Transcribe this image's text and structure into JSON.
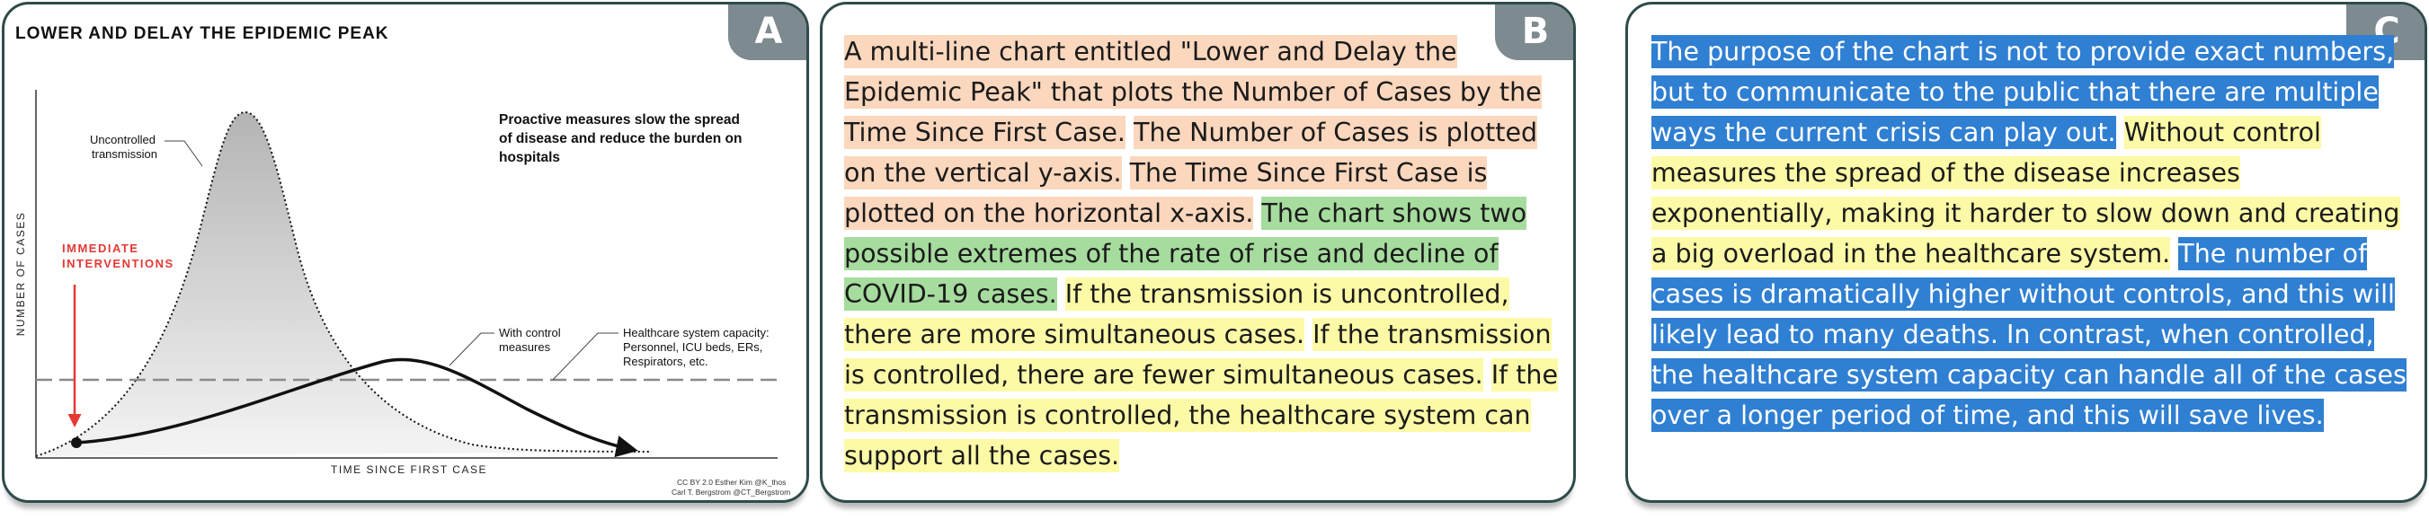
{
  "panels": {
    "a": {
      "tab": "A"
    },
    "b": {
      "tab": "B",
      "segments": [
        {
          "text": "A multi-line chart entitled \"Lower and Delay the Epidemic Peak\" that plots the Number of Cases by the Time Since First Case.",
          "color": "orange"
        },
        {
          "text": "The Number of Cases is plotted on the vertical y-axis.",
          "color": "orange"
        },
        {
          "text": "The Time Since First Case is plotted on the horizontal x-axis.",
          "color": "orange"
        },
        {
          "text": "The chart shows two possible extremes of the rate of rise and decline of COVID-19 cases.",
          "color": "green"
        },
        {
          "text": "If the transmission is uncontrolled, there are more simultaneous cases.",
          "color": "yellow"
        },
        {
          "text": "If the transmission is controlled, there are fewer simultaneous cases.",
          "color": "yellow"
        },
        {
          "text": "If the transmission is controlled, the healthcare system can support all the cases.",
          "color": "yellow"
        }
      ]
    },
    "c": {
      "tab": "C",
      "segments": [
        {
          "text": "The purpose of the chart is not to provide exact numbers, but to communicate to the public that there are multiple ways the current crisis can play out.",
          "color": "blue"
        },
        {
          "text": "Without control measures the spread of the disease increases exponentially, making it harder to slow down and creating a big overload in the healthcare system.",
          "color": "yellow"
        },
        {
          "text": "The number of cases is dramatically higher without controls, and this will likely lead to many deaths. In contrast, when controlled, the healthcare system capacity can handle all of the cases over a longer period of time, and this will save lives.",
          "color": "blue"
        }
      ]
    }
  },
  "chart": {
    "title": "LOWER AND DELAY THE EPIDEMIC PEAK",
    "ylabel": "NUMBER OF CASES",
    "xlabel": "TIME SINCE FIRST CASE",
    "uncontrolled_label": [
      "Uncontrolled",
      "transmission"
    ],
    "controlled_label": [
      "With control",
      "measures"
    ],
    "capacity_label": [
      "Healthcare system capacity:",
      "Personnel, ICU beds, ERs,",
      "Respirators, etc."
    ],
    "note": [
      "Proactive measures slow the spread",
      "of disease and reduce the burden on",
      "hospitals"
    ],
    "interventions": [
      "IMMEDIATE",
      "INTERVENTIONS"
    ],
    "credit": [
      "CC BY 2.0  Esther Kim  @K_thos",
      "Carl T. Bergstrom  @CT_Bergstrom"
    ]
  },
  "colors": {
    "orange": "#fbd7bd",
    "green": "#a6dc9e",
    "yellow": "#fdfaa7",
    "blue": "#2f7fd2",
    "intervention_red": "#e53935",
    "tab_grey": "#7d8a8f",
    "border": "#2f4b4b"
  },
  "chart_data": {
    "type": "line",
    "title": "LOWER AND DELAY THE EPIDEMIC PEAK",
    "xlabel": "TIME SINCE FIRST CASE",
    "ylabel": "NUMBER OF CASES",
    "series": [
      {
        "name": "Uncontrolled transmission",
        "style": "dotted",
        "shape": "tall early peak"
      },
      {
        "name": "With control measures",
        "style": "solid",
        "shape": "low delayed peak"
      }
    ],
    "reference_lines": [
      {
        "name": "Healthcare system capacity",
        "style": "dashed"
      }
    ],
    "annotations": [
      "IMMEDIATE INTERVENTIONS",
      "Proactive measures slow the spread of disease and reduce the burden on hospitals"
    ]
  }
}
